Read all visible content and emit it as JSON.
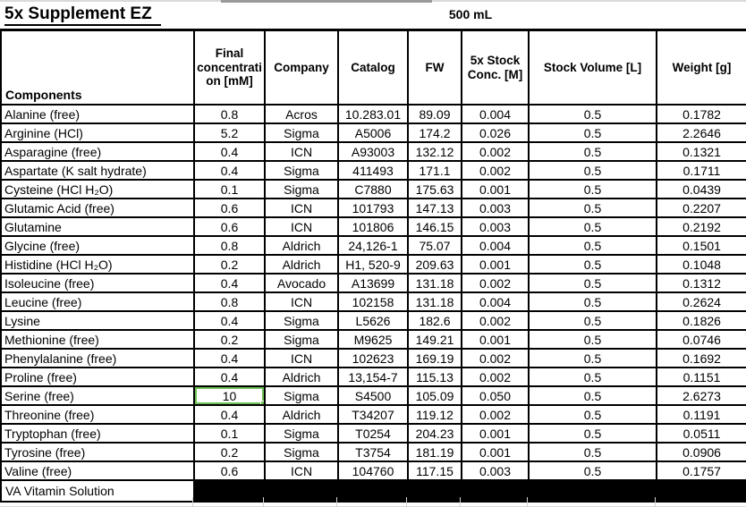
{
  "sheet": {
    "title": "5x Supplement EZ",
    "volume": "500 mL"
  },
  "columns": [
    "Components",
    "Final concentration [mM]",
    "Company",
    "Catalog",
    "FW",
    "5x Stock Conc. [M]",
    "Stock Volume [L]",
    "Weight [g]"
  ],
  "rows": [
    [
      "Alanine (free)",
      "0.8",
      "Acros",
      "10.283.01",
      "89.09",
      "0.004",
      "0.5",
      "0.1782"
    ],
    [
      "Arginine (HCl)",
      "5.2",
      "Sigma",
      "A5006",
      "174.2",
      "0.026",
      "0.5",
      "2.2646"
    ],
    [
      "Asparagine (free)",
      "0.4",
      "ICN",
      "A93003",
      "132.12",
      "0.002",
      "0.5",
      "0.1321"
    ],
    [
      "Aspartate (K salt hydrate)",
      "0.4",
      "Sigma",
      "411493",
      "171.1",
      "0.002",
      "0.5",
      "0.1711"
    ],
    [
      "Cysteine (HCl H₂O)",
      "0.1",
      "Sigma",
      "C7880",
      "175.63",
      "0.001",
      "0.5",
      "0.0439"
    ],
    [
      "Glutamic Acid (free)",
      "0.6",
      "ICN",
      "101793",
      "147.13",
      "0.003",
      "0.5",
      "0.2207"
    ],
    [
      "Glutamine",
      "0.6",
      "ICN",
      "101806",
      "146.15",
      "0.003",
      "0.5",
      "0.2192"
    ],
    [
      "Glycine (free)",
      "0.8",
      "Aldrich",
      "24,126-1",
      "75.07",
      "0.004",
      "0.5",
      "0.1501"
    ],
    [
      "Histidine (HCl H₂O)",
      "0.2",
      "Aldrich",
      "H1, 520-9",
      "209.63",
      "0.001",
      "0.5",
      "0.1048"
    ],
    [
      "Isoleucine (free)",
      "0.4",
      "Avocado",
      "A13699",
      "131.18",
      "0.002",
      "0.5",
      "0.1312"
    ],
    [
      "Leucine (free)",
      "0.8",
      "ICN",
      "102158",
      "131.18",
      "0.004",
      "0.5",
      "0.2624"
    ],
    [
      "Lysine",
      "0.4",
      "Sigma",
      "L5626",
      "182.6",
      "0.002",
      "0.5",
      "0.1826"
    ],
    [
      "Methionine (free)",
      "0.2",
      "Sigma",
      "M9625",
      "149.21",
      "0.001",
      "0.5",
      "0.0746"
    ],
    [
      "Phenylalanine (free)",
      "0.4",
      "ICN",
      "102623",
      "169.19",
      "0.002",
      "0.5",
      "0.1692"
    ],
    [
      "Proline (free)",
      "0.4",
      "Aldrich",
      "13,154-7",
      "115.13",
      "0.002",
      "0.5",
      "0.1151"
    ],
    [
      "Serine (free)",
      "10",
      "Sigma",
      "S4500",
      "105.09",
      "0.050",
      "0.5",
      "2.6273"
    ],
    [
      "Threonine (free)",
      "0.4",
      "Aldrich",
      "T34207",
      "119.12",
      "0.002",
      "0.5",
      "0.1191"
    ],
    [
      "Tryptophan (free)",
      "0.1",
      "Sigma",
      "T0254",
      "204.23",
      "0.001",
      "0.5",
      "0.0511"
    ],
    [
      "Tyrosine (free)",
      "0.2",
      "Sigma",
      "T3754",
      "181.19",
      "0.001",
      "0.5",
      "0.0906"
    ],
    [
      "Valine (free)",
      "0.6",
      "ICN",
      "104760",
      "117.15",
      "0.003",
      "0.5",
      "0.1757"
    ]
  ],
  "footer": {
    "label": "VA Vitamin Solution"
  },
  "selection": {
    "row": 15,
    "col": 1,
    "value": "10",
    "border_color": "#6ec257"
  },
  "colors": {
    "cell_border": "#000000",
    "filled_region": "#000000",
    "gridline": "#d6d6d6"
  }
}
